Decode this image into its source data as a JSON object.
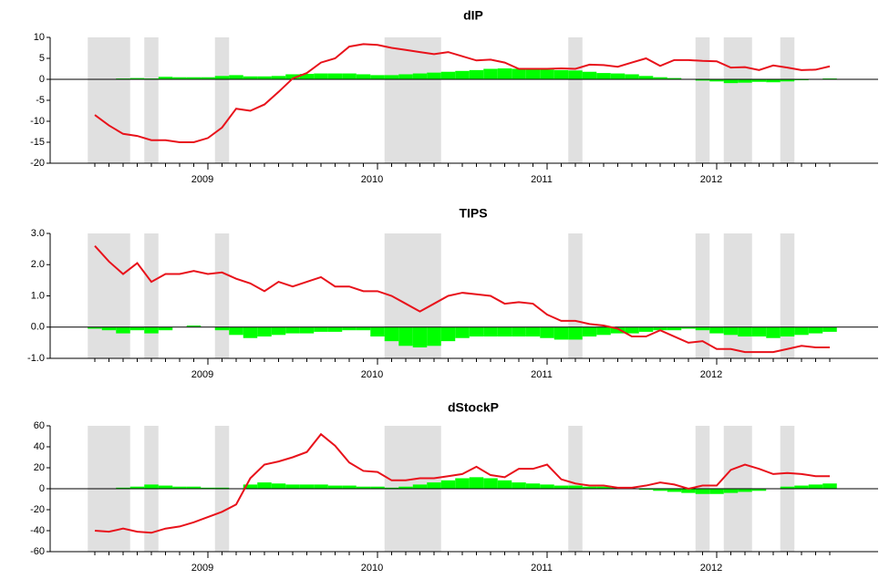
{
  "chart_data": [
    {
      "type": "bar-line",
      "title": "dIP",
      "categories": [
        null,
        null,
        null,
        null,
        null,
        null,
        null,
        null,
        "2009",
        null,
        null,
        null,
        null,
        null,
        null,
        null,
        null,
        null,
        null,
        null,
        "2010",
        null,
        null,
        null,
        null,
        null,
        null,
        null,
        null,
        null,
        null,
        null,
        "2011",
        null,
        null,
        null,
        null,
        null,
        null,
        null,
        null,
        null,
        null,
        null,
        "2012",
        null,
        null,
        null,
        null,
        null,
        null,
        null,
        null
      ],
      "highlight": [
        [
          0,
          2
        ],
        [
          4,
          4
        ],
        [
          9,
          9
        ],
        [
          21,
          24
        ],
        [
          34,
          34
        ],
        [
          43,
          43
        ],
        [
          45,
          46
        ],
        [
          49,
          49
        ]
      ],
      "highlight_color": "#e0e0e0",
      "ylim": [
        -20,
        10
      ],
      "yticks": [
        10,
        5,
        0,
        -5,
        -10,
        -15,
        -20
      ],
      "series": [
        {
          "type": "bar",
          "color": "#00ff00",
          "values": [
            0,
            0,
            0.2,
            0.3,
            0.2,
            0.6,
            0.5,
            0.5,
            0.5,
            0.8,
            1,
            0.7,
            0.7,
            0.8,
            1.2,
            1.3,
            1.4,
            1.4,
            1.4,
            1.2,
            1,
            1,
            1.2,
            1.4,
            1.6,
            1.8,
            2,
            2.2,
            2.5,
            2.6,
            2.5,
            2.4,
            2.3,
            2.2,
            2.1,
            1.8,
            1.5,
            1.4,
            1.2,
            0.8,
            0.5,
            0.3,
            0,
            -0.3,
            -0.5,
            -0.9,
            -0.8,
            -0.6,
            -0.7,
            -0.5,
            -0.2,
            0,
            0.2
          ]
        },
        {
          "type": "line",
          "color": "#e8121b",
          "values": [
            -8.5,
            -11,
            -13,
            -13.5,
            -14.5,
            -14.5,
            -15,
            -15,
            -14,
            -11.5,
            -7,
            -7.5,
            -6,
            -3,
            0.2,
            1.5,
            4,
            5,
            7.8,
            8.4,
            8.2,
            7.5,
            7,
            6.5,
            6,
            6.5,
            5.5,
            4.5,
            4.7,
            4,
            2.5,
            2.5,
            2.5,
            2.6,
            2.5,
            3.5,
            3.4,
            3,
            4,
            5,
            3.2,
            4.6,
            4.6,
            4.4,
            4.3,
            2.8,
            2.9,
            2.2,
            3.3,
            2.8,
            2.2,
            2.3,
            3.1
          ]
        }
      ]
    },
    {
      "type": "bar-line",
      "title": "TIPS",
      "categories": [
        null,
        null,
        null,
        null,
        null,
        null,
        null,
        null,
        "2009",
        null,
        null,
        null,
        null,
        null,
        null,
        null,
        null,
        null,
        null,
        null,
        "2010",
        null,
        null,
        null,
        null,
        null,
        null,
        null,
        null,
        null,
        null,
        null,
        "2011",
        null,
        null,
        null,
        null,
        null,
        null,
        null,
        null,
        null,
        null,
        null,
        "2012",
        null,
        null,
        null,
        null,
        null,
        null,
        null,
        null
      ],
      "highlight": [
        [
          0,
          2
        ],
        [
          4,
          4
        ],
        [
          9,
          9
        ],
        [
          21,
          24
        ],
        [
          34,
          34
        ],
        [
          43,
          43
        ],
        [
          45,
          46
        ],
        [
          49,
          49
        ]
      ],
      "highlight_color": "#e0e0e0",
      "ylim": [
        -1,
        3
      ],
      "yticks": [
        {
          "value": 3,
          "label": "3.0"
        },
        {
          "value": 2,
          "label": "2.0"
        },
        {
          "value": 1,
          "label": "1.0"
        },
        {
          "value": 0,
          "label": "0.0"
        },
        {
          "value": -1,
          "label": "-1.0"
        }
      ],
      "series": [
        {
          "type": "bar",
          "color": "#00ff00",
          "values": [
            -0.05,
            -0.1,
            -0.2,
            -0.1,
            -0.2,
            -0.1,
            0,
            0.05,
            0,
            -0.1,
            -0.25,
            -0.35,
            -0.3,
            -0.25,
            -0.2,
            -0.2,
            -0.15,
            -0.15,
            -0.1,
            -0.1,
            -0.3,
            -0.45,
            -0.6,
            -0.65,
            -0.6,
            -0.45,
            -0.35,
            -0.3,
            -0.3,
            -0.3,
            -0.3,
            -0.3,
            -0.35,
            -0.4,
            -0.4,
            -0.3,
            -0.25,
            -0.2,
            -0.2,
            -0.15,
            -0.1,
            -0.1,
            -0.05,
            -0.1,
            -0.2,
            -0.25,
            -0.3,
            -0.3,
            -0.35,
            -0.3,
            -0.25,
            -0.2,
            -0.15
          ]
        },
        {
          "type": "line",
          "color": "#e8121b",
          "values": [
            2.6,
            2.1,
            1.7,
            2.05,
            1.45,
            1.7,
            1.7,
            1.8,
            1.7,
            1.75,
            1.55,
            1.4,
            1.15,
            1.45,
            1.3,
            1.45,
            1.6,
            1.3,
            1.3,
            1.15,
            1.15,
            1.0,
            0.75,
            0.5,
            0.75,
            1.0,
            1.1,
            1.05,
            1.0,
            0.75,
            0.8,
            0.75,
            0.4,
            0.2,
            0.2,
            0.1,
            0.05,
            -0.05,
            -0.3,
            -0.3,
            -0.1,
            -0.3,
            -0.5,
            -0.45,
            -0.7,
            -0.7,
            -0.8,
            -0.8,
            -0.8,
            -0.7,
            -0.6,
            -0.65,
            -0.65
          ]
        }
      ]
    },
    {
      "type": "bar-line",
      "title": "dStockP",
      "categories": [
        null,
        null,
        null,
        null,
        null,
        null,
        null,
        null,
        "2009",
        null,
        null,
        null,
        null,
        null,
        null,
        null,
        null,
        null,
        null,
        null,
        "2010",
        null,
        null,
        null,
        null,
        null,
        null,
        null,
        null,
        null,
        null,
        null,
        "2011",
        null,
        null,
        null,
        null,
        null,
        null,
        null,
        null,
        null,
        null,
        null,
        "2012",
        null,
        null,
        null,
        null,
        null,
        null,
        null,
        null
      ],
      "highlight": [
        [
          0,
          2
        ],
        [
          4,
          4
        ],
        [
          9,
          9
        ],
        [
          21,
          24
        ],
        [
          34,
          34
        ],
        [
          43,
          43
        ],
        [
          45,
          46
        ],
        [
          49,
          49
        ]
      ],
      "highlight_color": "#e0e0e0",
      "ylim": [
        -60,
        60
      ],
      "yticks": [
        60,
        40,
        20,
        0,
        -20,
        -40,
        -60
      ],
      "series": [
        {
          "type": "bar",
          "color": "#00ff00",
          "values": [
            0,
            0,
            1,
            2,
            4,
            3,
            2,
            2,
            1,
            1,
            0,
            4,
            6,
            5,
            4,
            4,
            4,
            3,
            3,
            2,
            2,
            1,
            2,
            4,
            6,
            8,
            10,
            11,
            10,
            8,
            6,
            5,
            4,
            3,
            3,
            2,
            2,
            1,
            0,
            -1,
            -2,
            -3,
            -4,
            -5,
            -5,
            -4,
            -3,
            -2,
            0,
            2,
            3,
            4,
            5
          ]
        },
        {
          "type": "line",
          "color": "#e8121b",
          "values": [
            -40,
            -41,
            -38,
            -41,
            -42,
            -38,
            -36,
            -32,
            -27,
            -22,
            -15,
            10,
            23,
            26,
            30,
            35,
            52,
            41,
            25,
            17,
            16,
            8,
            8,
            10,
            10,
            12,
            14,
            21,
            13,
            11,
            19,
            19,
            23,
            9,
            5,
            3,
            3,
            1,
            1,
            3,
            6,
            4,
            0,
            3,
            3,
            18,
            23,
            19,
            14,
            15,
            14,
            12,
            12
          ]
        }
      ]
    }
  ]
}
